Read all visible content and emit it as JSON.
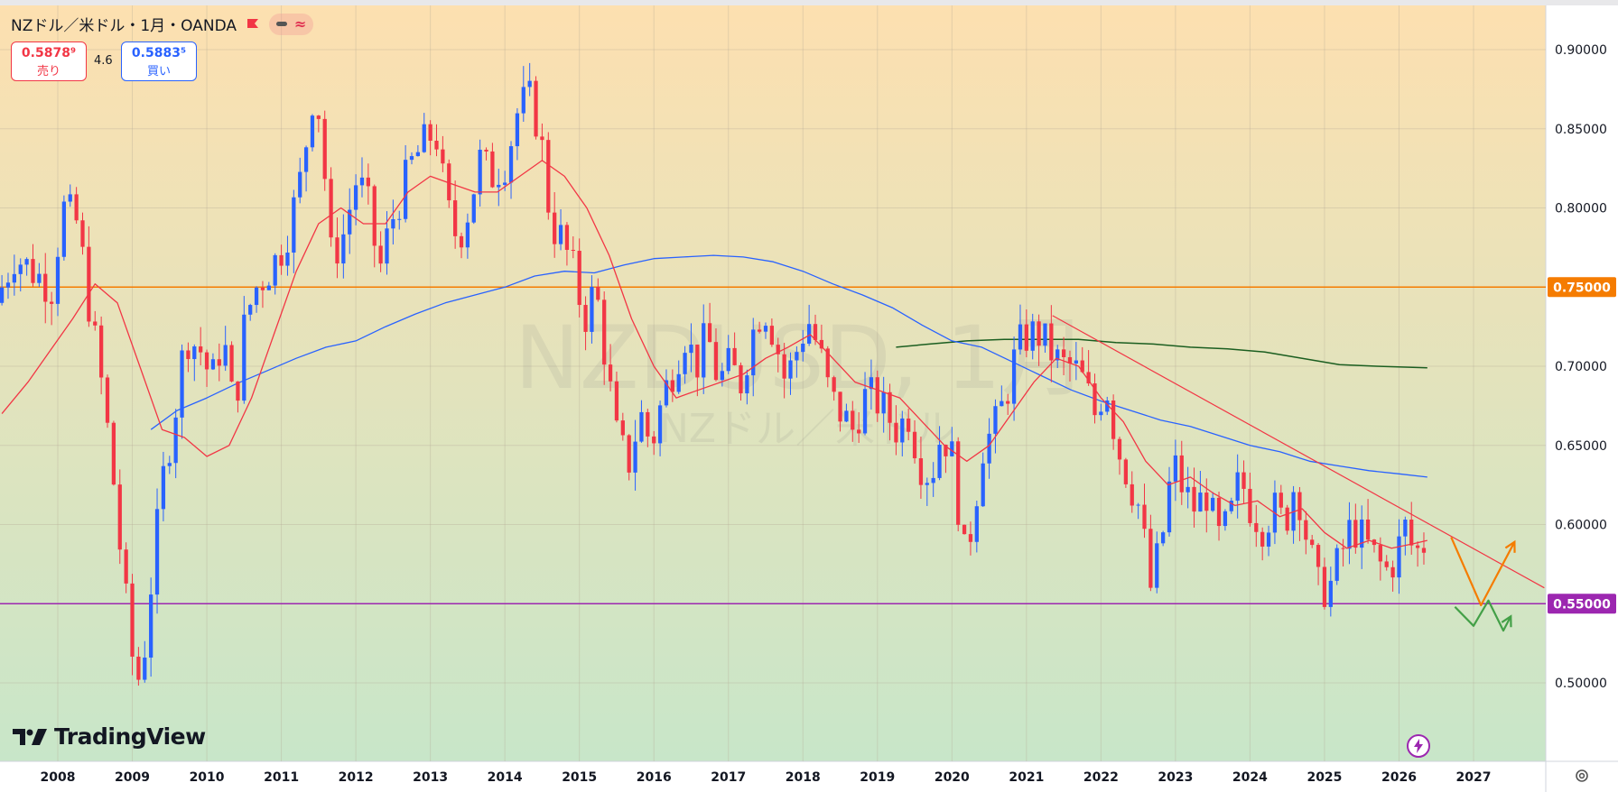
{
  "header": {
    "title": "NZドル／米ドル・1月・OANDA",
    "approx_symbol": "≈"
  },
  "quotes": {
    "sell_price": "0.5878⁹",
    "sell_label": "売り",
    "spread": "4.6",
    "buy_price": "0.5883⁵",
    "buy_label": "買い"
  },
  "watermark": {
    "symbol": "NZDUSD, 1月",
    "name": "NZドル／米ドル"
  },
  "logo": {
    "text": "TradingView"
  },
  "colors": {
    "up": "#2962ff",
    "down": "#f23645",
    "ma_short": "#f23645",
    "ma_mid": "#2962ff",
    "ma_long": "#1b5e20",
    "resistance": "#f57c00",
    "support": "#9c27b0",
    "trendline": "#f23645",
    "projection_up": "#f57c00",
    "projection_down": "#43a047",
    "bg_top": "#fde0b0",
    "bg_bottom": "#c8e6c9"
  },
  "chart_data": {
    "type": "candlestick",
    "timeframe": "1月",
    "x_labels": [
      "2008",
      "2009",
      "2010",
      "2011",
      "2012",
      "2013",
      "2014",
      "2015",
      "2016",
      "2017",
      "2018",
      "2019",
      "2020",
      "2021",
      "2022",
      "2023",
      "2024",
      "2025",
      "2026",
      "2027"
    ],
    "y_ticks": [
      "0.90000",
      "0.85000",
      "0.80000",
      "0.75000",
      "0.70000",
      "0.65000",
      "0.60000",
      "0.55000",
      "0.50000"
    ],
    "y_range": [
      0.45,
      0.92
    ],
    "x_range": [
      2007.25,
      2027.95
    ],
    "horizontal_lines": [
      {
        "label": "0.75000",
        "value": 0.75,
        "color": "#f57c00"
      },
      {
        "label": "0.55000",
        "value": 0.55,
        "color": "#9c27b0"
      }
    ],
    "trendline": {
      "start": [
        2021.35,
        0.732
      ],
      "end": [
        2027.95,
        0.56
      ]
    },
    "projections": [
      {
        "color": "#f57c00",
        "points": [
          [
            2026.7,
            0.592
          ],
          [
            2027.1,
            0.549
          ],
          [
            2027.55,
            0.589
          ]
        ]
      },
      {
        "color": "#43a047",
        "points": [
          [
            2026.75,
            0.548
          ],
          [
            2027.0,
            0.536
          ],
          [
            2027.2,
            0.552
          ],
          [
            2027.4,
            0.533
          ],
          [
            2027.5,
            0.542
          ]
        ]
      }
    ],
    "price_path": [
      [
        2007.25,
        0.74
      ],
      [
        2007.5,
        0.77
      ],
      [
        2007.75,
        0.76
      ],
      [
        2008.0,
        0.75
      ],
      [
        2008.15,
        0.8
      ],
      [
        2008.35,
        0.79
      ],
      [
        2008.5,
        0.74
      ],
      [
        2008.7,
        0.68
      ],
      [
        2008.85,
        0.62
      ],
      [
        2008.95,
        0.57
      ],
      [
        2009.1,
        0.51
      ],
      [
        2009.2,
        0.5
      ],
      [
        2009.35,
        0.57
      ],
      [
        2009.5,
        0.63
      ],
      [
        2009.65,
        0.67
      ],
      [
        2009.8,
        0.72
      ],
      [
        2010.0,
        0.71
      ],
      [
        2010.15,
        0.69
      ],
      [
        2010.3,
        0.72
      ],
      [
        2010.45,
        0.67
      ],
      [
        2010.6,
        0.73
      ],
      [
        2010.75,
        0.75
      ],
      [
        2010.9,
        0.76
      ],
      [
        2011.05,
        0.77
      ],
      [
        2011.2,
        0.79
      ],
      [
        2011.35,
        0.82
      ],
      [
        2011.5,
        0.87
      ],
      [
        2011.6,
        0.86
      ],
      [
        2011.75,
        0.77
      ],
      [
        2011.9,
        0.78
      ],
      [
        2012.1,
        0.82
      ],
      [
        2012.25,
        0.8
      ],
      [
        2012.4,
        0.76
      ],
      [
        2012.55,
        0.79
      ],
      [
        2012.7,
        0.81
      ],
      [
        2012.85,
        0.83
      ],
      [
        2013.0,
        0.84
      ],
      [
        2013.15,
        0.85
      ],
      [
        2013.3,
        0.8
      ],
      [
        2013.45,
        0.78
      ],
      [
        2013.6,
        0.8
      ],
      [
        2013.75,
        0.83
      ],
      [
        2013.9,
        0.82
      ],
      [
        2014.1,
        0.83
      ],
      [
        2014.25,
        0.86
      ],
      [
        2014.4,
        0.87
      ],
      [
        2014.55,
        0.85
      ],
      [
        2014.7,
        0.79
      ],
      [
        2014.85,
        0.78
      ],
      [
        2015.0,
        0.76
      ],
      [
        2015.15,
        0.73
      ],
      [
        2015.3,
        0.75
      ],
      [
        2015.45,
        0.7
      ],
      [
        2015.6,
        0.65
      ],
      [
        2015.75,
        0.64
      ],
      [
        2015.9,
        0.67
      ],
      [
        2016.05,
        0.65
      ],
      [
        2016.2,
        0.68
      ],
      [
        2016.35,
        0.7
      ],
      [
        2016.5,
        0.72
      ],
      [
        2016.65,
        0.7
      ],
      [
        2016.8,
        0.72
      ],
      [
        2016.95,
        0.69
      ],
      [
        2017.1,
        0.7
      ],
      [
        2017.25,
        0.69
      ],
      [
        2017.4,
        0.72
      ],
      [
        2017.55,
        0.74
      ],
      [
        2017.7,
        0.72
      ],
      [
        2017.85,
        0.69
      ],
      [
        2018.0,
        0.71
      ],
      [
        2018.15,
        0.73
      ],
      [
        2018.3,
        0.71
      ],
      [
        2018.45,
        0.68
      ],
      [
        2018.6,
        0.67
      ],
      [
        2018.75,
        0.66
      ],
      [
        2018.9,
        0.68
      ],
      [
        2019.05,
        0.68
      ],
      [
        2019.2,
        0.67
      ],
      [
        2019.35,
        0.66
      ],
      [
        2019.5,
        0.67
      ],
      [
        2019.65,
        0.64
      ],
      [
        2019.8,
        0.63
      ],
      [
        2019.95,
        0.66
      ],
      [
        2020.1,
        0.64
      ],
      [
        2020.25,
        0.58
      ],
      [
        2020.35,
        0.6
      ],
      [
        2020.5,
        0.65
      ],
      [
        2020.65,
        0.66
      ],
      [
        2020.8,
        0.68
      ],
      [
        2020.95,
        0.71
      ],
      [
        2021.1,
        0.72
      ],
      [
        2021.25,
        0.72
      ],
      [
        2021.4,
        0.71
      ],
      [
        2021.55,
        0.7
      ],
      [
        2021.7,
        0.7
      ],
      [
        2021.85,
        0.69
      ],
      [
        2022.0,
        0.67
      ],
      [
        2022.15,
        0.69
      ],
      [
        2022.3,
        0.65
      ],
      [
        2022.45,
        0.63
      ],
      [
        2022.6,
        0.61
      ],
      [
        2022.75,
        0.56
      ],
      [
        2022.9,
        0.59
      ],
      [
        2023.05,
        0.64
      ],
      [
        2023.2,
        0.62
      ],
      [
        2023.35,
        0.61
      ],
      [
        2023.5,
        0.62
      ],
      [
        2023.65,
        0.59
      ],
      [
        2023.8,
        0.6
      ],
      [
        2023.95,
        0.63
      ],
      [
        2024.1,
        0.61
      ],
      [
        2024.25,
        0.6
      ],
      [
        2024.4,
        0.61
      ],
      [
        2024.55,
        0.6
      ],
      [
        2024.7,
        0.63
      ],
      [
        2024.85,
        0.59
      ],
      [
        2025.0,
        0.56
      ],
      [
        2025.15,
        0.56
      ],
      [
        2025.3,
        0.58
      ],
      [
        2025.45,
        0.6
      ],
      [
        2025.6,
        0.59
      ],
      [
        2025.75,
        0.58
      ],
      [
        2025.9,
        0.57
      ],
      [
        2026.05,
        0.58
      ],
      [
        2026.15,
        0.6
      ],
      [
        2026.3,
        0.58
      ],
      [
        2026.38,
        0.588
      ]
    ],
    "ma_short": [
      [
        2007.25,
        0.67
      ],
      [
        2007.6,
        0.69
      ],
      [
        2007.9,
        0.71
      ],
      [
        2008.2,
        0.73
      ],
      [
        2008.5,
        0.752
      ],
      [
        2008.8,
        0.74
      ],
      [
        2009.1,
        0.7
      ],
      [
        2009.4,
        0.66
      ],
      [
        2009.7,
        0.655
      ],
      [
        2010.0,
        0.643
      ],
      [
        2010.3,
        0.65
      ],
      [
        2010.6,
        0.68
      ],
      [
        2010.9,
        0.72
      ],
      [
        2011.2,
        0.76
      ],
      [
        2011.5,
        0.79
      ],
      [
        2011.8,
        0.8
      ],
      [
        2012.1,
        0.79
      ],
      [
        2012.4,
        0.79
      ],
      [
        2012.7,
        0.81
      ],
      [
        2013.0,
        0.82
      ],
      [
        2013.3,
        0.815
      ],
      [
        2013.6,
        0.81
      ],
      [
        2013.9,
        0.81
      ],
      [
        2014.2,
        0.82
      ],
      [
        2014.5,
        0.83
      ],
      [
        2014.8,
        0.82
      ],
      [
        2015.1,
        0.8
      ],
      [
        2015.4,
        0.77
      ],
      [
        2015.7,
        0.73
      ],
      [
        2016.0,
        0.7
      ],
      [
        2016.3,
        0.68
      ],
      [
        2016.6,
        0.685
      ],
      [
        2016.9,
        0.69
      ],
      [
        2017.2,
        0.695
      ],
      [
        2017.5,
        0.705
      ],
      [
        2017.8,
        0.712
      ],
      [
        2018.1,
        0.72
      ],
      [
        2018.4,
        0.705
      ],
      [
        2018.7,
        0.69
      ],
      [
        2019.0,
        0.685
      ],
      [
        2019.3,
        0.68
      ],
      [
        2019.6,
        0.665
      ],
      [
        2019.9,
        0.65
      ],
      [
        2020.2,
        0.64
      ],
      [
        2020.5,
        0.65
      ],
      [
        2020.8,
        0.67
      ],
      [
        2021.1,
        0.69
      ],
      [
        2021.4,
        0.705
      ],
      [
        2021.7,
        0.7
      ],
      [
        2022.0,
        0.68
      ],
      [
        2022.3,
        0.665
      ],
      [
        2022.6,
        0.64
      ],
      [
        2022.9,
        0.625
      ],
      [
        2023.2,
        0.63
      ],
      [
        2023.5,
        0.62
      ],
      [
        2023.8,
        0.612
      ],
      [
        2024.1,
        0.615
      ],
      [
        2024.4,
        0.605
      ],
      [
        2024.7,
        0.61
      ],
      [
        2025.0,
        0.595
      ],
      [
        2025.3,
        0.585
      ],
      [
        2025.6,
        0.59
      ],
      [
        2025.9,
        0.585
      ],
      [
        2026.2,
        0.588
      ],
      [
        2026.38,
        0.59
      ]
    ],
    "ma_mid": [
      [
        2009.25,
        0.66
      ],
      [
        2009.6,
        0.672
      ],
      [
        2010.0,
        0.68
      ],
      [
        2010.4,
        0.689
      ],
      [
        2010.8,
        0.697
      ],
      [
        2011.2,
        0.705
      ],
      [
        2011.6,
        0.712
      ],
      [
        2012.0,
        0.716
      ],
      [
        2012.4,
        0.725
      ],
      [
        2012.8,
        0.733
      ],
      [
        2013.2,
        0.74
      ],
      [
        2013.6,
        0.745
      ],
      [
        2014.0,
        0.75
      ],
      [
        2014.4,
        0.757
      ],
      [
        2014.8,
        0.76
      ],
      [
        2015.2,
        0.759
      ],
      [
        2015.6,
        0.764
      ],
      [
        2016.0,
        0.768
      ],
      [
        2016.4,
        0.769
      ],
      [
        2016.8,
        0.77
      ],
      [
        2017.2,
        0.769
      ],
      [
        2017.6,
        0.766
      ],
      [
        2018.0,
        0.76
      ],
      [
        2018.4,
        0.752
      ],
      [
        2018.8,
        0.745
      ],
      [
        2019.2,
        0.737
      ],
      [
        2019.6,
        0.726
      ],
      [
        2020.0,
        0.716
      ],
      [
        2020.4,
        0.712
      ],
      [
        2020.8,
        0.703
      ],
      [
        2021.2,
        0.694
      ],
      [
        2021.6,
        0.685
      ],
      [
        2022.0,
        0.678
      ],
      [
        2022.4,
        0.672
      ],
      [
        2022.8,
        0.666
      ],
      [
        2023.2,
        0.662
      ],
      [
        2023.6,
        0.656
      ],
      [
        2024.0,
        0.65
      ],
      [
        2024.4,
        0.646
      ],
      [
        2024.8,
        0.64
      ],
      [
        2025.2,
        0.637
      ],
      [
        2025.6,
        0.634
      ],
      [
        2026.0,
        0.632
      ],
      [
        2026.38,
        0.63
      ]
    ],
    "ma_long": [
      [
        2019.25,
        0.712
      ],
      [
        2019.7,
        0.714
      ],
      [
        2020.2,
        0.716
      ],
      [
        2020.7,
        0.717
      ],
      [
        2021.2,
        0.717
      ],
      [
        2021.7,
        0.717
      ],
      [
        2022.2,
        0.715
      ],
      [
        2022.7,
        0.714
      ],
      [
        2023.2,
        0.712
      ],
      [
        2023.7,
        0.711
      ],
      [
        2024.2,
        0.709
      ],
      [
        2024.7,
        0.705
      ],
      [
        2025.2,
        0.701
      ],
      [
        2025.7,
        0.7
      ],
      [
        2026.38,
        0.699
      ]
    ]
  }
}
